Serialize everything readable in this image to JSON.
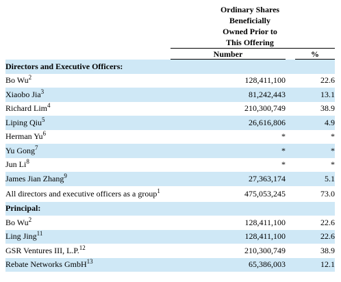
{
  "header": {
    "lines": [
      "Ordinary Shares",
      "Beneficially",
      "Owned Prior to",
      "This Offering"
    ],
    "number_label": "Number",
    "percent_label": "%"
  },
  "rows": [
    {
      "type": "section",
      "label": "Directors and Executive Officers:",
      "shade": true
    },
    {
      "label": "Bo Wu",
      "note": "2",
      "number": "128,411,100",
      "percent": "22.6",
      "shade": false
    },
    {
      "label": "Xiaobo Jia",
      "note": "3",
      "number": "81,242,443",
      "percent": "13.1",
      "shade": true
    },
    {
      "label": "Richard Lim",
      "note": "4",
      "number": "210,300,749",
      "percent": "38.9",
      "shade": false
    },
    {
      "label": "Liping Qiu",
      "note": "5",
      "number": "26,616,806",
      "percent": "4.9",
      "shade": true
    },
    {
      "label": "Herman Yu",
      "note": "6",
      "number": "*",
      "percent": "*",
      "shade": false
    },
    {
      "label": "Yu Gong",
      "note": "7",
      "number": "*",
      "percent": "*",
      "shade": true
    },
    {
      "label": "Jun Li",
      "note": "8",
      "number": "*",
      "percent": "*",
      "shade": false
    },
    {
      "label": "James Jian Zhang",
      "note": "9",
      "number": "27,363,174",
      "percent": "5.1",
      "shade": true
    },
    {
      "label": "All directors and executive officers as a group",
      "note": "1",
      "number": "475,053,245",
      "percent": "73.0",
      "shade": false,
      "tall": true
    },
    {
      "type": "section",
      "label": "Principal:",
      "shade": true
    },
    {
      "label": "Bo Wu",
      "note": "2",
      "number": "128,411,100",
      "percent": "22.6",
      "shade": false
    },
    {
      "label": "Ling Jing",
      "note": "11",
      "number": "128,411,100",
      "percent": "22.6",
      "shade": true
    },
    {
      "label": "GSR Ventures III, L.P.",
      "note": "12",
      "number": "210,300,749",
      "percent": "38.9",
      "shade": false
    },
    {
      "label": "Rebate Networks GmbH",
      "note": "13",
      "number": "65,386,003",
      "percent": "12.1",
      "shade": true
    }
  ]
}
